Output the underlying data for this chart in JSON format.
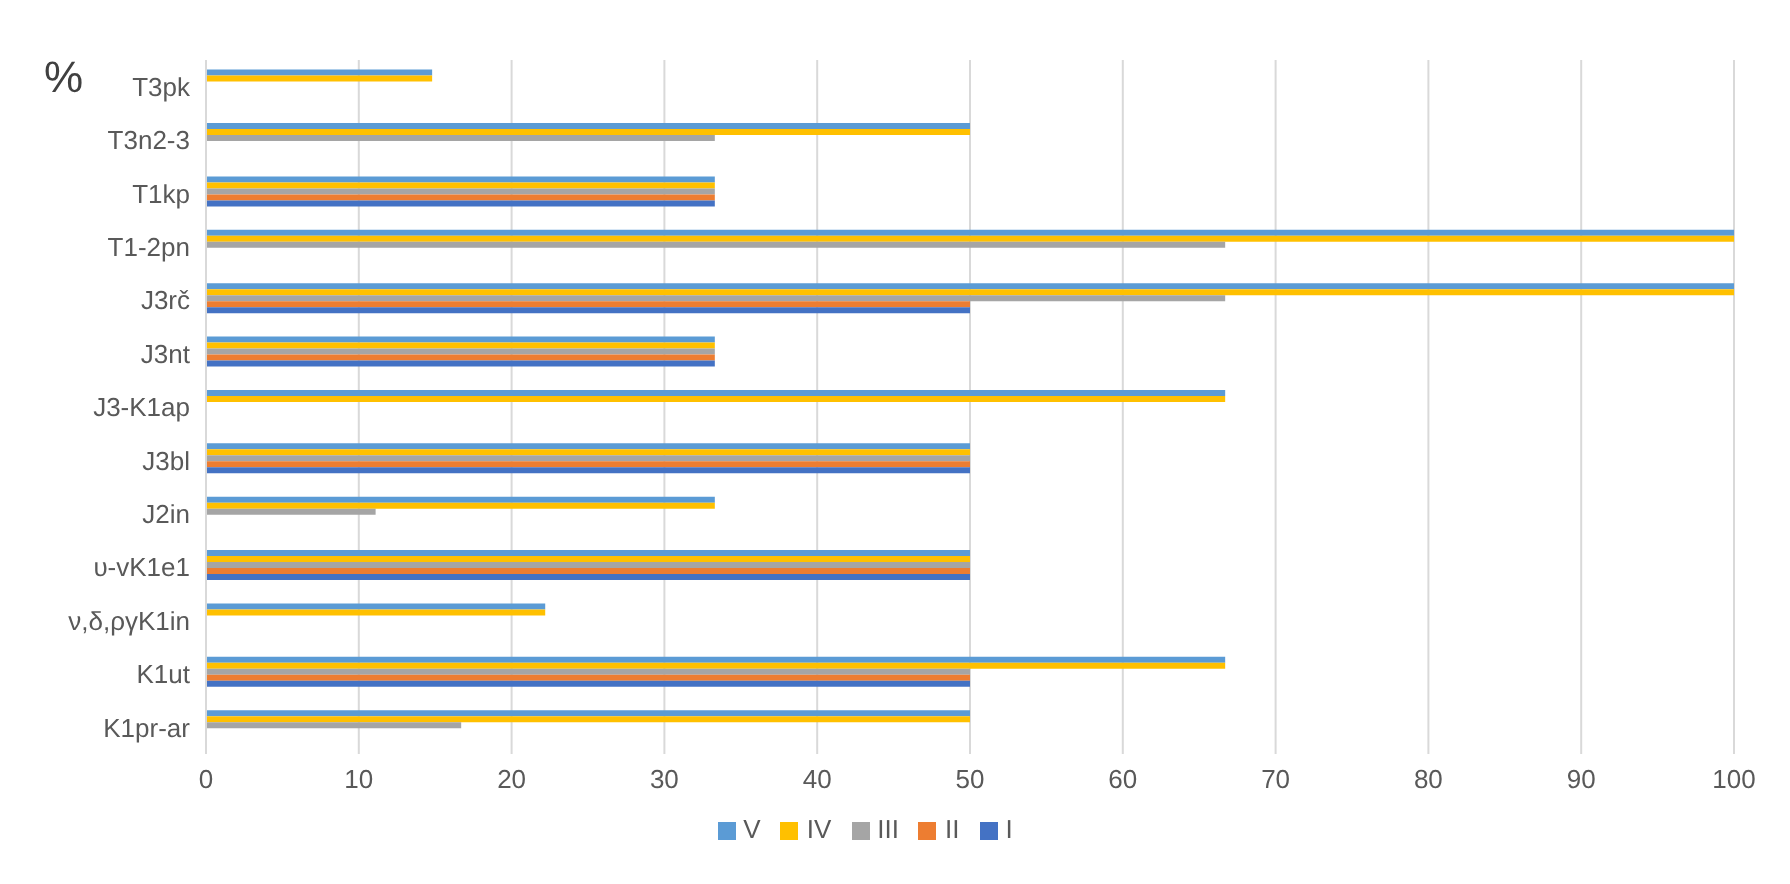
{
  "chart_data": {
    "type": "bar",
    "orientation": "horizontal",
    "ylabel": "%",
    "categories": [
      "T3pk",
      "T3n2-3",
      "T1kp",
      "T1-2pn",
      "J3rč",
      "J3nt",
      "J3-K1ap",
      "J3bl",
      "J2in",
      "υ-vK1e1",
      "ν,δ,ργK1in",
      "K1ut",
      "K1pr-ar"
    ],
    "series": [
      {
        "name": "V",
        "color": "#5b9bd5",
        "values": [
          14.8,
          50,
          33.3,
          100,
          100,
          33.3,
          66.7,
          50,
          33.3,
          50,
          22.2,
          66.7,
          50
        ]
      },
      {
        "name": "IV",
        "color": "#ffc000",
        "values": [
          14.8,
          50,
          33.3,
          100,
          100,
          33.3,
          66.7,
          50,
          33.3,
          50,
          22.2,
          66.7,
          50
        ]
      },
      {
        "name": "III",
        "color": "#a5a5a5",
        "values": [
          null,
          33.3,
          33.3,
          66.7,
          66.7,
          33.3,
          null,
          50,
          11.1,
          50,
          null,
          50,
          16.7
        ]
      },
      {
        "name": "II",
        "color": "#ed7d31",
        "values": [
          null,
          null,
          33.3,
          null,
          50,
          33.3,
          null,
          50,
          null,
          50,
          null,
          50,
          null
        ]
      },
      {
        "name": "I",
        "color": "#4472c4",
        "values": [
          null,
          null,
          33.3,
          null,
          50,
          33.3,
          null,
          50,
          null,
          50,
          null,
          50,
          null
        ]
      }
    ],
    "xlim": [
      0,
      100
    ],
    "xticks": [
      0,
      10,
      20,
      30,
      40,
      50,
      60,
      70,
      80,
      90,
      100
    ],
    "grid": "x",
    "legend": "bottom"
  }
}
